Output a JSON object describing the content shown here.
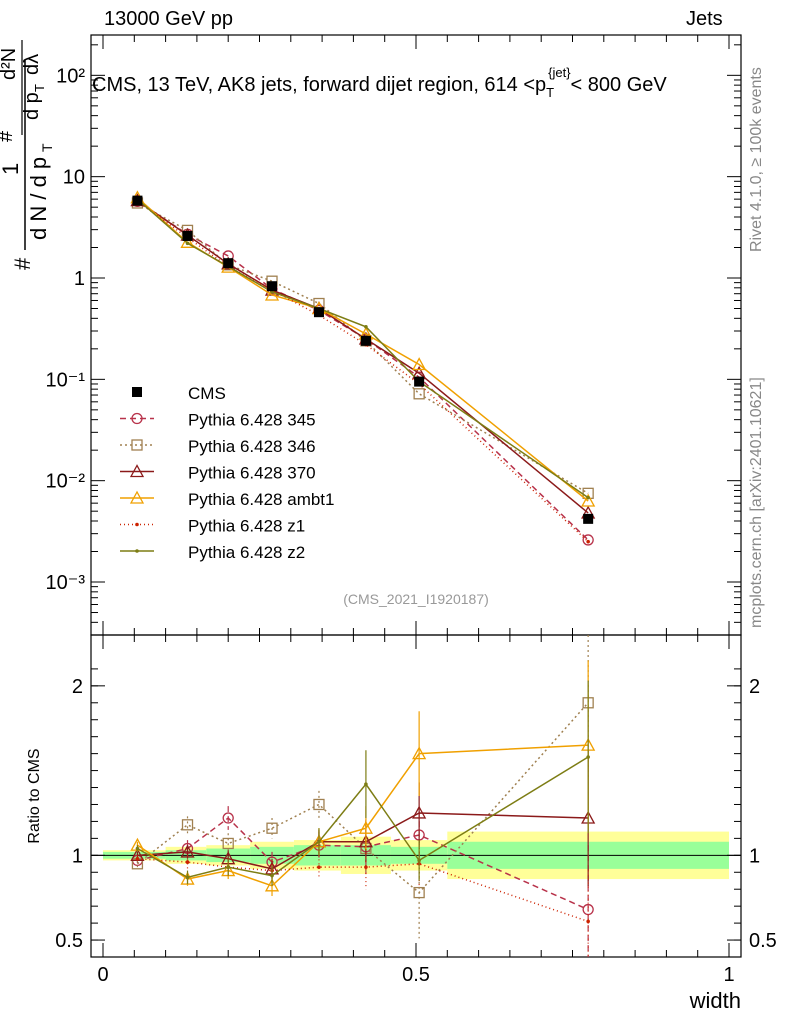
{
  "header": {
    "left": "13000 GeV pp",
    "right": "Jets"
  },
  "side": {
    "rivet": "Rivet 4.1.0, ≥ 100k events",
    "mcplots": "mcplots.cern.ch [arXiv:2401.10621]"
  },
  "chart_data": {
    "type": "line",
    "title_parts": {
      "prefix": "CMS, 13 TeV, AK8 jets, forward dijet region, 614 <",
      "p": "p",
      "sub": "T",
      "sup": "{jet}",
      "suffix": "< 800 GeV"
    },
    "analysis_tag": "(CMS_2021_I1920187)",
    "ylabel_main": "#  1 / dN / d p_T  # d²N / d p_T dλ",
    "ylabel_ratio": "Ratio to CMS",
    "xlabel": "width",
    "xlim": [
      0,
      1
    ],
    "ylim_main": [
      0.0003,
      250
    ],
    "ylim_ratio": [
      0.4,
      2.3
    ],
    "x_ticks": [
      "0",
      "0.5",
      "1"
    ],
    "y_ticks_main": [
      "10⁻³",
      "10⁻²",
      "10⁻¹",
      "1",
      "10",
      "10²"
    ],
    "y_ticks_ratio": [
      "0.5",
      "1",
      "2"
    ],
    "x": [
      0.055,
      0.135,
      0.2,
      0.27,
      0.345,
      0.42,
      0.505,
      0.775
    ],
    "bin_edges": [
      0.0,
      0.1,
      0.165,
      0.235,
      0.305,
      0.38,
      0.46,
      0.55,
      1.0
    ],
    "cms": {
      "name": "CMS",
      "values": [
        5.8,
        2.6,
        1.4,
        0.83,
        0.46,
        0.24,
        0.095,
        0.0042
      ],
      "stat_band": [
        0.02,
        0.03,
        0.04,
        0.05,
        0.06,
        0.06,
        0.05,
        0.08
      ],
      "total_band": [
        0.03,
        0.05,
        0.06,
        0.08,
        0.09,
        0.11,
        0.09,
        0.14
      ],
      "color": "#000000"
    },
    "band_colors": {
      "stat": "#99ff99",
      "total": "#ffff99"
    },
    "series": [
      {
        "name": "Pythia 6.428 345",
        "color": "#b8324a",
        "dash": "6,4",
        "marker": "circle",
        "values": [
          5.7,
          2.7,
          1.65,
          0.78,
          0.48,
          0.25,
          0.105,
          0.0026
        ],
        "ratio": [
          0.97,
          1.04,
          1.22,
          0.96,
          1.06,
          1.05,
          1.12,
          0.68
        ],
        "ratio_err": [
          0.02,
          0.05,
          0.07,
          0.06,
          0.08,
          0.16,
          0.14,
          0.38
        ]
      },
      {
        "name": "Pythia 6.428 346",
        "color": "#a08050",
        "dash": "2,3",
        "marker": "square",
        "values": [
          5.5,
          2.95,
          1.35,
          0.93,
          0.56,
          0.24,
          0.072,
          0.0075
        ],
        "ratio": [
          0.95,
          1.18,
          1.07,
          1.16,
          1.3,
          1.04,
          0.78,
          1.9
        ],
        "ratio_err": [
          0.02,
          0.05,
          0.06,
          0.06,
          0.08,
          0.14,
          0.27,
          0.45
        ]
      },
      {
        "name": "Pythia 6.428 370",
        "color": "#8b1a1a",
        "dash": "",
        "marker": "triangle",
        "values": [
          5.8,
          2.65,
          1.38,
          0.76,
          0.5,
          0.25,
          0.115,
          0.0048
        ],
        "ratio": [
          1.0,
          1.02,
          0.98,
          0.92,
          1.08,
          1.08,
          1.25,
          1.22
        ],
        "ratio_err": [
          0.02,
          0.04,
          0.05,
          0.06,
          0.07,
          0.12,
          0.18,
          0.4
        ]
      },
      {
        "name": "Pythia 6.428 ambt1",
        "color": "#f0a000",
        "dash": "",
        "marker": "triangle",
        "values": [
          6.2,
          2.25,
          1.28,
          0.68,
          0.5,
          0.28,
          0.14,
          0.0063
        ],
        "ratio": [
          1.06,
          0.86,
          0.91,
          0.82,
          1.08,
          1.16,
          1.6,
          1.65
        ],
        "ratio_err": [
          0.02,
          0.04,
          0.05,
          0.06,
          0.08,
          0.13,
          0.25,
          0.5
        ]
      },
      {
        "name": "Pythia 6.428 z1",
        "color": "#cc2200",
        "dash": "1,3",
        "marker": "dot",
        "values": [
          5.7,
          2.5,
          1.3,
          0.76,
          0.43,
          0.22,
          0.09,
          0.0025
        ],
        "ratio": [
          0.98,
          0.96,
          0.93,
          0.91,
          0.93,
          0.93,
          0.95,
          0.61
        ],
        "ratio_err": [
          0.02,
          0.04,
          0.05,
          0.06,
          0.07,
          0.13,
          0.14,
          0.3
        ]
      },
      {
        "name": "Pythia 6.428 z2",
        "color": "#7d7d14",
        "dash": "",
        "marker": "dot",
        "values": [
          6.0,
          2.2,
          1.3,
          0.73,
          0.5,
          0.33,
          0.095,
          0.0068
        ],
        "ratio": [
          1.04,
          0.87,
          0.93,
          0.88,
          1.08,
          1.42,
          0.97,
          1.58
        ],
        "ratio_err": [
          0.02,
          0.04,
          0.05,
          0.06,
          0.08,
          0.2,
          0.12,
          0.45
        ]
      }
    ]
  }
}
